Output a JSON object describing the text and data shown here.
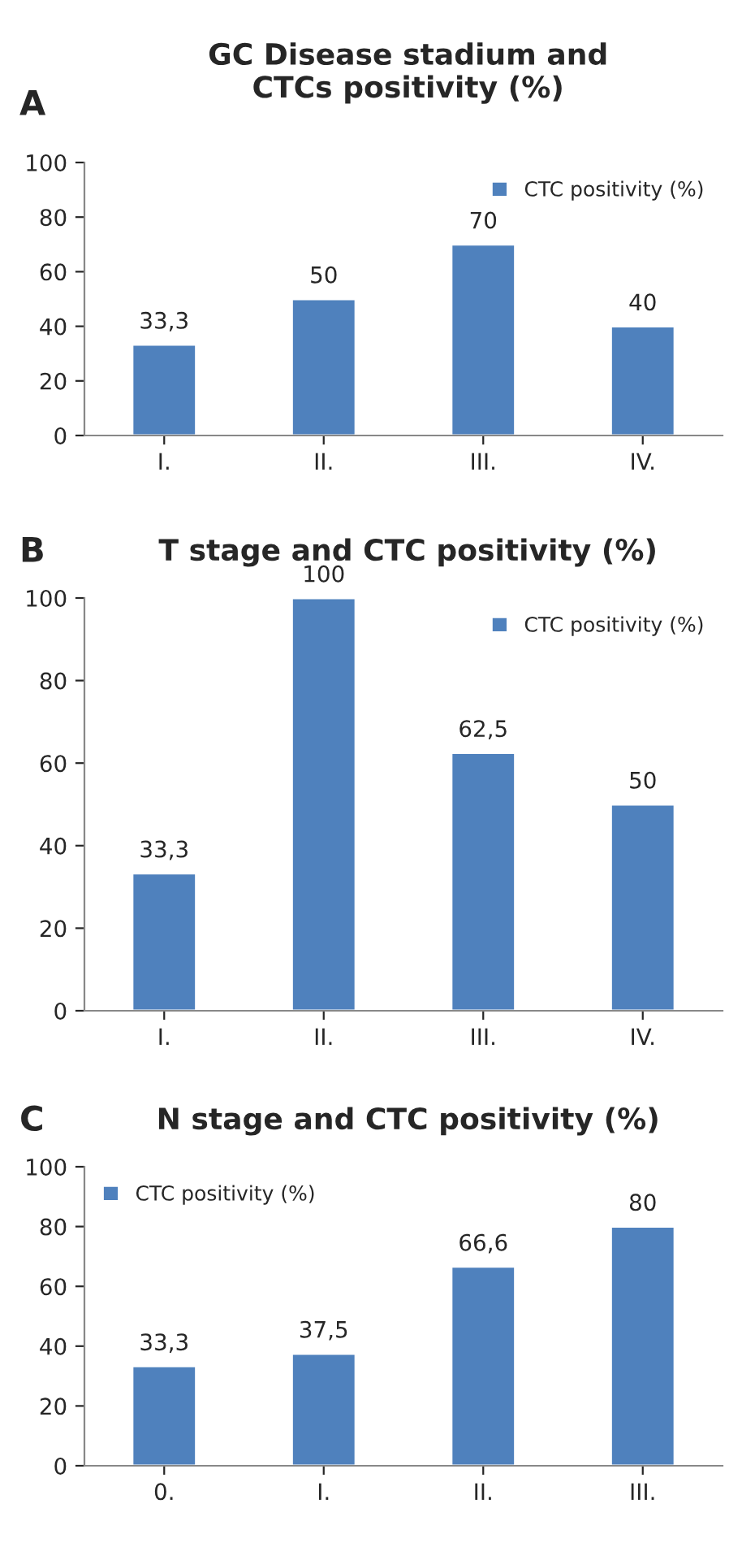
{
  "chart_data": [
    {
      "type": "bar",
      "title": "GC Disease stadium and\nCTCs positivity (%)",
      "annotations": [
        "A"
      ],
      "categories": [
        "I.",
        "II.",
        "III.",
        "IV."
      ],
      "series": [
        {
          "name": "CTC positivity (%)",
          "color": "#4f81bd",
          "values": [
            33.3,
            50,
            70,
            40
          ],
          "value_labels": [
            "33,3",
            "50",
            "70",
            "40"
          ]
        }
      ],
      "ylim": [
        0,
        100
      ],
      "yticks": [
        0,
        20,
        40,
        60,
        80,
        100
      ],
      "legend": "top right",
      "grid": false
    },
    {
      "type": "bar",
      "title": "T stage and CTC positivity (%)",
      "annotations": [
        "B"
      ],
      "categories": [
        "I.",
        "II.",
        "III.",
        "IV."
      ],
      "series": [
        {
          "name": "CTC positivity (%)",
          "color": "#4f81bd",
          "values": [
            33.3,
            100,
            62.5,
            50
          ],
          "value_labels": [
            "33,3",
            "100",
            "62,5",
            "50"
          ]
        }
      ],
      "ylim": [
        0,
        100
      ],
      "yticks": [
        0,
        20,
        40,
        60,
        80,
        100
      ],
      "legend": "top right",
      "grid": false
    },
    {
      "type": "bar",
      "title": "N stage and CTC positivity (%)",
      "annotations": [
        "C"
      ],
      "categories": [
        "0.",
        "I.",
        "II.",
        "III."
      ],
      "series": [
        {
          "name": "CTC positivity (%)",
          "color": "#4f81bd",
          "values": [
            33.3,
            37.5,
            66.6,
            80
          ],
          "value_labels": [
            "33,3",
            "37,5",
            "66,6",
            "80"
          ]
        }
      ],
      "ylim": [
        0,
        100
      ],
      "yticks": [
        0,
        20,
        40,
        60,
        80,
        100
      ],
      "legend": "top left",
      "grid": false
    }
  ]
}
